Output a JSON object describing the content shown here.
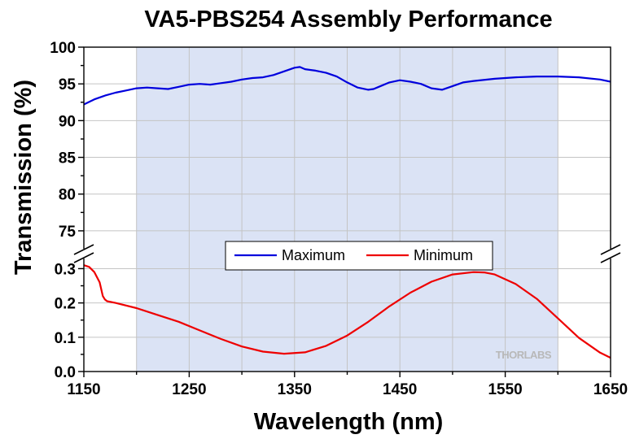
{
  "chart_data": {
    "type": "line",
    "title": "VA5-PBS254 Assembly Performance",
    "xlabel": "Wavelength (nm)",
    "ylabel": "Transmission (%)",
    "xlim": [
      1150,
      1650
    ],
    "x_ticks": [
      1150,
      1250,
      1350,
      1450,
      1550,
      1650
    ],
    "y_axis_break": true,
    "upper_panel": {
      "ylim": [
        73,
        100
      ],
      "y_ticks": [
        75,
        80,
        85,
        90,
        95,
        100
      ]
    },
    "lower_panel": {
      "ylim": [
        0,
        0.32
      ],
      "y_ticks": [
        0.0,
        0.1,
        0.2,
        0.3
      ]
    },
    "shaded_region": [
      1200,
      1600
    ],
    "grid": true,
    "legend_placement": "center",
    "watermark": "THORLABS",
    "series": [
      {
        "name": "Maximum",
        "color": "#0000dd",
        "panel": "upper",
        "x": [
          1150,
          1160,
          1170,
          1180,
          1190,
          1200,
          1210,
          1220,
          1230,
          1240,
          1250,
          1260,
          1270,
          1280,
          1290,
          1300,
          1310,
          1320,
          1330,
          1340,
          1350,
          1355,
          1360,
          1370,
          1380,
          1390,
          1400,
          1410,
          1420,
          1425,
          1430,
          1440,
          1450,
          1460,
          1470,
          1480,
          1490,
          1500,
          1510,
          1520,
          1540,
          1560,
          1580,
          1600,
          1620,
          1640,
          1650
        ],
        "y": [
          92.2,
          92.9,
          93.4,
          93.8,
          94.1,
          94.4,
          94.5,
          94.4,
          94.3,
          94.6,
          94.9,
          95.0,
          94.9,
          95.1,
          95.3,
          95.6,
          95.8,
          95.9,
          96.2,
          96.7,
          97.2,
          97.3,
          97.0,
          96.8,
          96.5,
          96.0,
          95.2,
          94.5,
          94.2,
          94.3,
          94.6,
          95.2,
          95.5,
          95.3,
          95.0,
          94.4,
          94.2,
          94.7,
          95.2,
          95.4,
          95.7,
          95.9,
          96.0,
          96.0,
          95.9,
          95.6,
          95.3
        ]
      },
      {
        "name": "Minimum",
        "color": "#ee0000",
        "panel": "lower",
        "x": [
          1150,
          1155,
          1160,
          1165,
          1168,
          1170,
          1172,
          1180,
          1200,
          1220,
          1240,
          1260,
          1280,
          1300,
          1320,
          1340,
          1360,
          1380,
          1400,
          1420,
          1440,
          1460,
          1480,
          1500,
          1520,
          1530,
          1540,
          1560,
          1580,
          1600,
          1620,
          1640,
          1650
        ],
        "y": [
          0.31,
          0.305,
          0.29,
          0.26,
          0.22,
          0.21,
          0.205,
          0.2,
          0.185,
          0.165,
          0.145,
          0.12,
          0.095,
          0.073,
          0.058,
          0.052,
          0.056,
          0.075,
          0.105,
          0.145,
          0.19,
          0.23,
          0.262,
          0.283,
          0.29,
          0.289,
          0.283,
          0.255,
          0.212,
          0.155,
          0.098,
          0.055,
          0.04
        ]
      }
    ]
  }
}
